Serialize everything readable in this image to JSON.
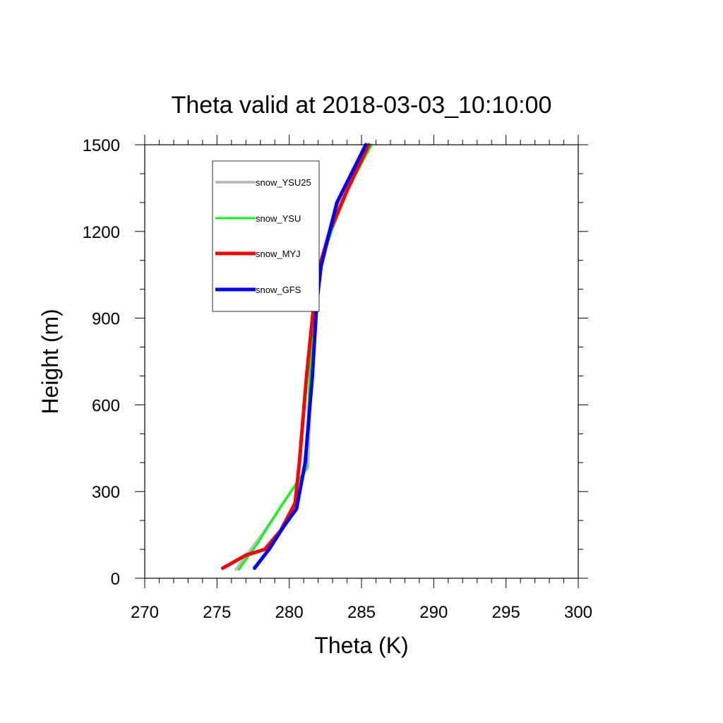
{
  "chart_data": {
    "type": "line",
    "title": "Theta valid at 2018-03-03_10:10:00",
    "xlabel": "Theta (K)",
    "ylabel": "Height (m)",
    "xlim": [
      270,
      300
    ],
    "ylim": [
      0,
      1500
    ],
    "x_ticks": [
      "270",
      "275",
      "280",
      "285",
      "290",
      "295",
      "300"
    ],
    "y_ticks": [
      "0",
      "300",
      "600",
      "900",
      "1200",
      "1500"
    ],
    "grid": false,
    "legend_position": "top-left",
    "series": [
      {
        "name": "snow_YSU25",
        "color": "#bebebe",
        "points": [
          [
            276.3,
            30
          ],
          [
            277.5,
            110
          ],
          [
            278.8,
            200
          ],
          [
            280.0,
            290
          ],
          [
            281.3,
            385
          ],
          [
            281.5,
            700
          ],
          [
            281.8,
            950
          ],
          [
            282.1,
            1080
          ],
          [
            283.0,
            1250
          ],
          [
            284.2,
            1380
          ],
          [
            285.2,
            1480
          ]
        ]
      },
      {
        "name": "snow_YSU",
        "color": "#00ff00",
        "points": [
          [
            276.5,
            30
          ],
          [
            277.8,
            120
          ],
          [
            279.3,
            240
          ],
          [
            280.5,
            330
          ],
          [
            281.2,
            380
          ],
          [
            281.4,
            700
          ],
          [
            281.8,
            950
          ],
          [
            282.1,
            1080
          ],
          [
            283.0,
            1210
          ],
          [
            284.2,
            1360
          ],
          [
            285.7,
            1500
          ]
        ]
      },
      {
        "name": "snow_MYJ",
        "color": "#ff0000",
        "points": [
          [
            275.4,
            35
          ],
          [
            277.0,
            80
          ],
          [
            278.3,
            100
          ],
          [
            279.4,
            165
          ],
          [
            280.4,
            260
          ],
          [
            280.7,
            400
          ],
          [
            281.2,
            700
          ],
          [
            281.7,
            950
          ],
          [
            282.1,
            1080
          ],
          [
            282.8,
            1200
          ],
          [
            283.9,
            1330
          ],
          [
            285.5,
            1500
          ]
        ]
      },
      {
        "name": "snow_GFS",
        "color": "#0000ff",
        "points": [
          [
            277.6,
            35
          ],
          [
            278.6,
            100
          ],
          [
            279.7,
            185
          ],
          [
            280.5,
            240
          ],
          [
            281.1,
            400
          ],
          [
            281.6,
            700
          ],
          [
            281.9,
            950
          ],
          [
            282.2,
            1080
          ],
          [
            283.3,
            1300
          ],
          [
            284.3,
            1400
          ],
          [
            285.3,
            1500
          ]
        ]
      }
    ]
  }
}
